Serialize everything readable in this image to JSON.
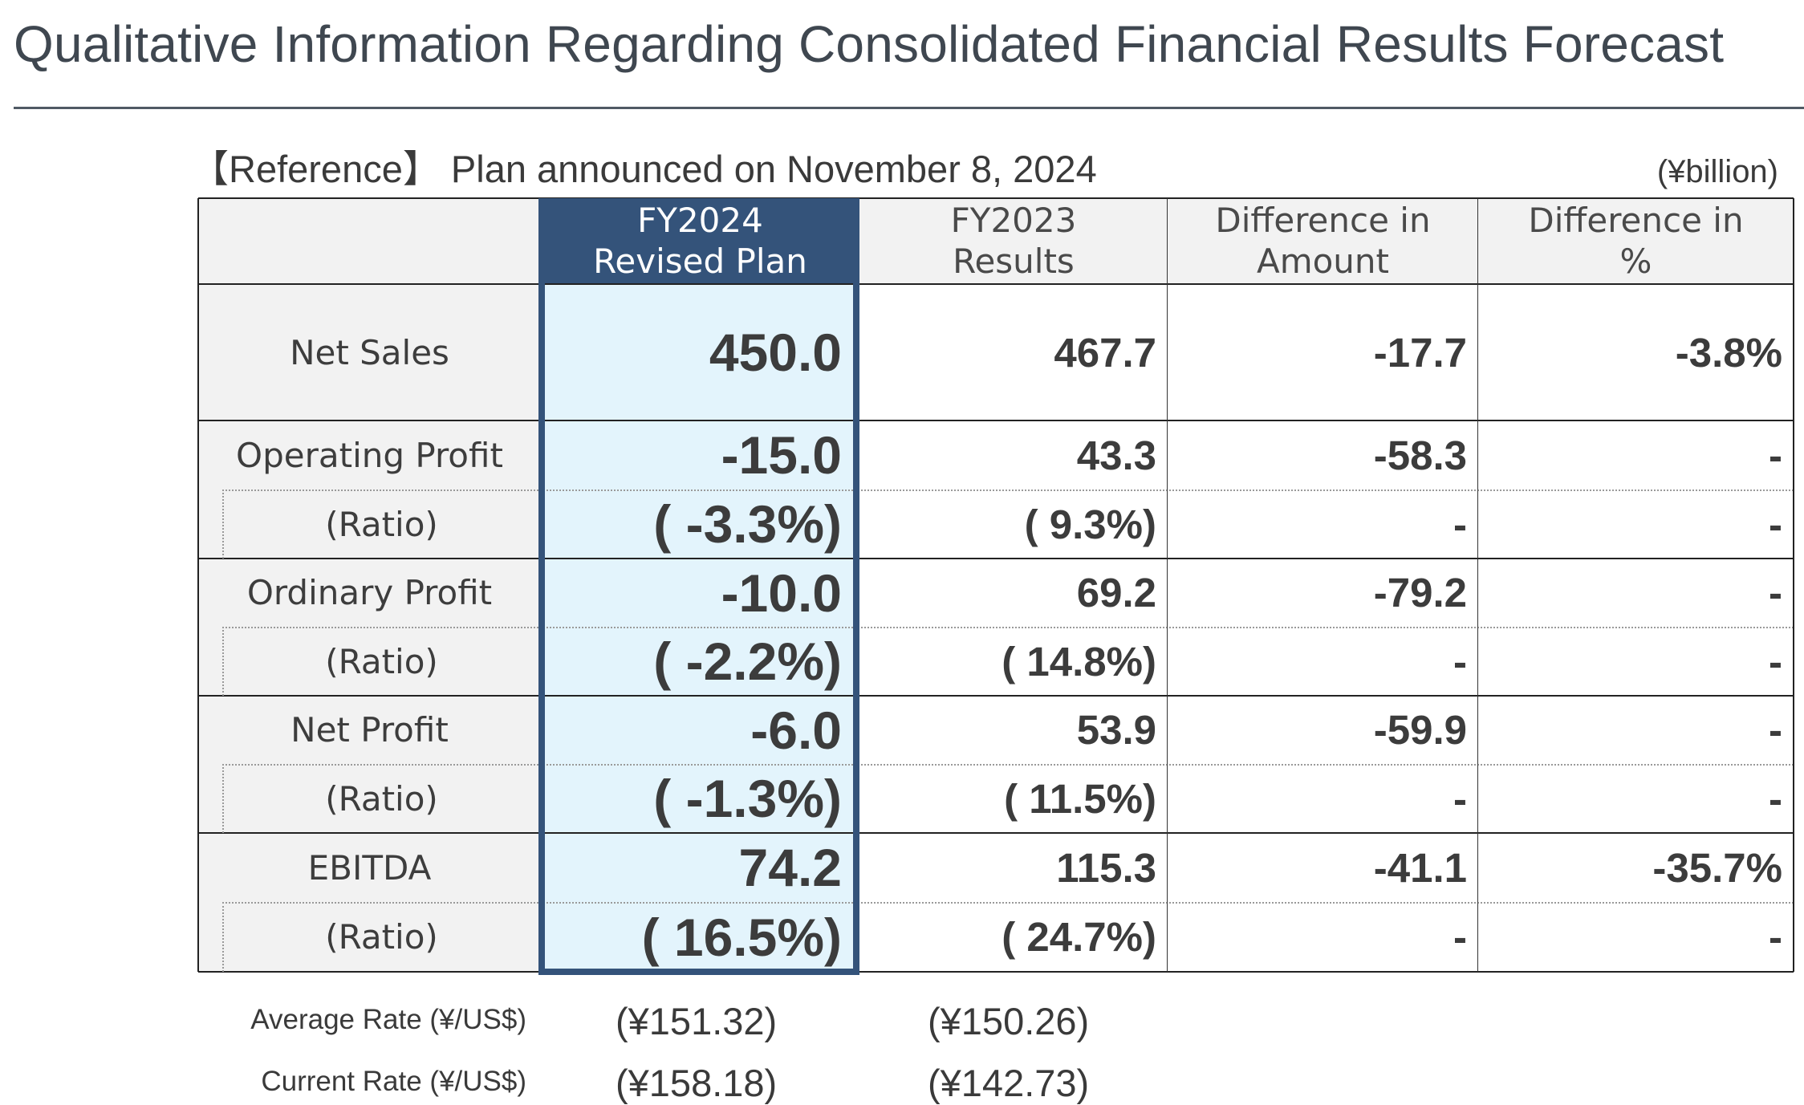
{
  "page": {
    "title": "Qualitative Information Regarding Consolidated Financial Results Forecast",
    "subtitle": "【Reference】 Plan announced on November 8, 2024",
    "unit": "(¥billion)"
  },
  "table": {
    "headers": [
      "",
      "FY2024\nRevised Plan",
      "FY2023\nResults",
      "Difference in\nAmount",
      "Difference in\n%"
    ],
    "rows": [
      {
        "label": "Net Sales",
        "kind": "main",
        "values": [
          "450.0",
          "467.7",
          "-17.7",
          "-3.8%"
        ]
      },
      {
        "label": "Operating Profit",
        "kind": "main",
        "values": [
          "-15.0",
          "43.3",
          "-58.3",
          "-"
        ]
      },
      {
        "label": "(Ratio)",
        "kind": "ratio",
        "values": [
          "( -3.3%)",
          "( 9.3%)",
          "-",
          "-"
        ]
      },
      {
        "label": "Ordinary Profit",
        "kind": "main",
        "values": [
          "-10.0",
          "69.2",
          "-79.2",
          "-"
        ]
      },
      {
        "label": "(Ratio)",
        "kind": "ratio",
        "values": [
          "( -2.2%)",
          "( 14.8%)",
          "-",
          "-"
        ]
      },
      {
        "label": "Net Profit",
        "kind": "main",
        "values": [
          "-6.0",
          "53.9",
          "-59.9",
          "-"
        ]
      },
      {
        "label": "(Ratio)",
        "kind": "ratio",
        "values": [
          "( -1.3%)",
          "( 11.5%)",
          "-",
          "-"
        ]
      },
      {
        "label": "EBITDA",
        "kind": "main",
        "values": [
          "74.2",
          "115.3",
          "-41.1",
          "-35.7%"
        ]
      },
      {
        "label": "(Ratio)",
        "kind": "ratio",
        "values": [
          "( 16.5%)",
          "( 24.7%)",
          "-",
          "-"
        ]
      }
    ]
  },
  "rates": [
    {
      "label": "Average Rate (¥/US$)",
      "fy2024": "(¥151.32)",
      "fy2023": "(¥150.26)"
    },
    {
      "label": "Current Rate (¥/US$)",
      "fy2024": "(¥158.18)",
      "fy2023": "(¥142.73)"
    }
  ],
  "colors": {
    "accent": "#34537a",
    "highlight_fill": "#e3f4fc",
    "header_fill": "#f2f2f2"
  }
}
